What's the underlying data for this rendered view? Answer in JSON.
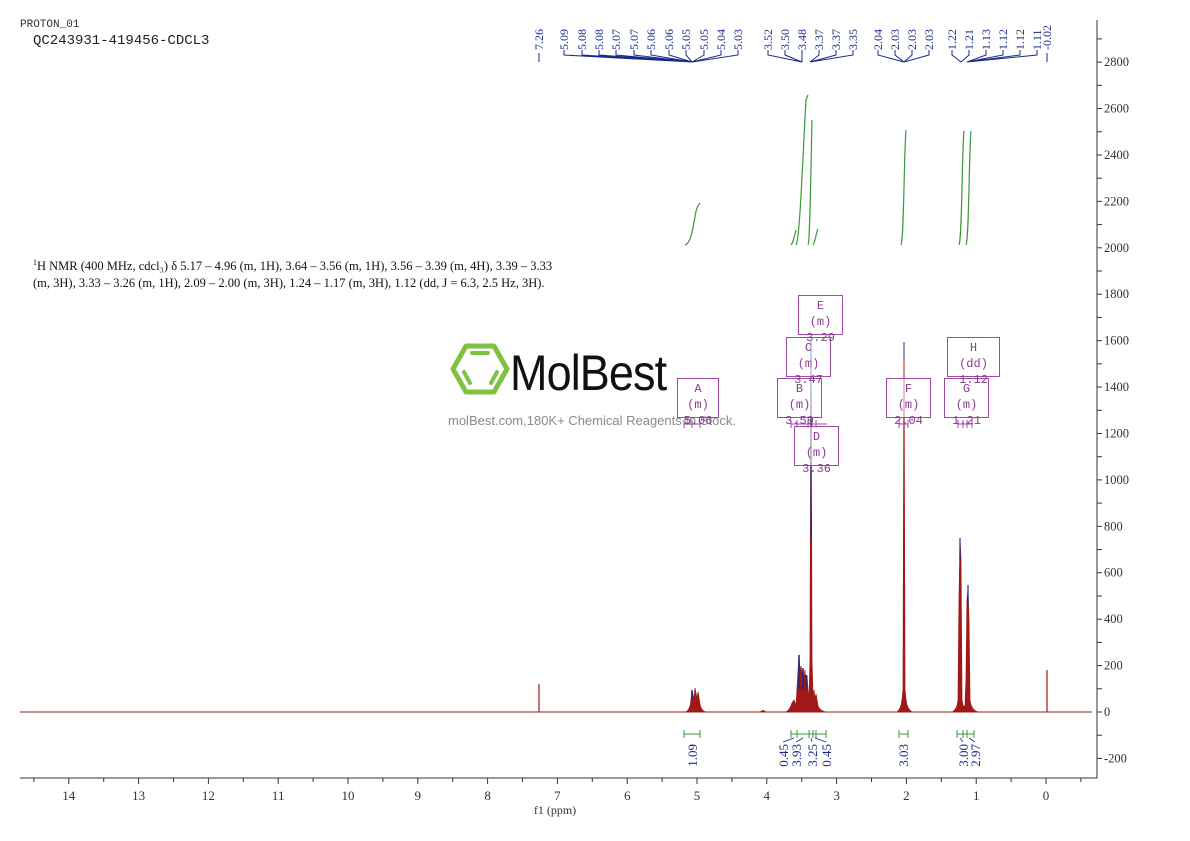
{
  "header": {
    "experiment": "PROTON_01",
    "sample_id": "QC243931-419456-CDCL3"
  },
  "description": {
    "line1_prefix": "1",
    "line1": "H NMR (400 MHz, cdcl₃) δ 5.17 – 4.96 (m, 1H), 3.64 – 3.56 (m, 1H), 3.56 – 3.39 (m, 4H), 3.39 – 3.33",
    "line2": "(m, 3H), 3.33 – 3.26 (m, 1H), 2.09 – 2.00 (m, 3H), 1.24 – 1.17 (m, 3H), 1.12 (dd, J = 6.3, 2.5 Hz, 3H)."
  },
  "watermark": {
    "brand": "MolBest",
    "tagline": "molBest.com,180K+ Chemical Reagents In Stock.",
    "logo_color": "#7dc243"
  },
  "peak_boxes": [
    {
      "id": "A",
      "mult": "A (m)",
      "shift": "5.06"
    },
    {
      "id": "B",
      "mult": "B (m)",
      "shift": "3.59"
    },
    {
      "id": "C",
      "mult": "C (m)",
      "shift": "3.47"
    },
    {
      "id": "D",
      "mult": "D (m)",
      "shift": "3.36"
    },
    {
      "id": "E",
      "mult": "E (m)",
      "shift": "3.29"
    },
    {
      "id": "F",
      "mult": "F (m)",
      "shift": "2.04"
    },
    {
      "id": "G",
      "mult": "G (m)",
      "shift": "1.21"
    },
    {
      "id": "H",
      "mult": "H (dd)",
      "shift": "1.12"
    }
  ],
  "colors": {
    "spectrum": "#a01818",
    "peak_label": "#1a2a8a",
    "integral": "#3a9a3a",
    "multiplet_box": "#a04aa8",
    "axis": "#333333"
  },
  "chart_data": {
    "type": "line",
    "title": "PROTON_01 QC243931-419456-CDCL3",
    "xlabel": "f1 (ppm)",
    "ylabel": "",
    "xlim": [
      14.7,
      -0.7
    ],
    "ylim": [
      -280,
      2980
    ],
    "x_ticks": [
      "14",
      "13",
      "12",
      "11",
      "10",
      "9",
      "8",
      "7",
      "6",
      "5",
      "4",
      "3",
      "2",
      "1",
      "0"
    ],
    "y_ticks": [
      "2800",
      "2600",
      "2400",
      "2200",
      "2000",
      "1800",
      "1600",
      "1400",
      "1200",
      "1000",
      "800",
      "600",
      "400",
      "200",
      "0",
      "-200"
    ],
    "peak_labels_ppm": [
      "7.26",
      "5.09",
      "5.08",
      "5.08",
      "5.07",
      "5.07",
      "5.06",
      "5.06",
      "5.05",
      "5.05",
      "5.04",
      "5.03",
      "3.52",
      "3.50",
      "3.48",
      "3.37",
      "3.37",
      "3.35",
      "2.04",
      "2.03",
      "2.03",
      "2.03",
      "1.22",
      "1.21",
      "1.13",
      "1.12",
      "1.12",
      "1.11",
      "-0.02"
    ],
    "peaks": [
      {
        "ppm": 7.26,
        "intensity": 120
      },
      {
        "ppm": 5.06,
        "intensity": 100
      },
      {
        "ppm": 3.59,
        "intensity": 70
      },
      {
        "ppm": 3.5,
        "intensity": 250
      },
      {
        "ppm": 3.47,
        "intensity": 200
      },
      {
        "ppm": 3.42,
        "intensity": 180
      },
      {
        "ppm": 3.36,
        "intensity": 1590
      },
      {
        "ppm": 3.29,
        "intensity": 90
      },
      {
        "ppm": 2.04,
        "intensity": 1600
      },
      {
        "ppm": 1.21,
        "intensity": 750
      },
      {
        "ppm": 1.12,
        "intensity": 540
      },
      {
        "ppm": -0.02,
        "intensity": 180
      }
    ],
    "integrals": [
      {
        "range": [
          5.17,
          4.96
        ],
        "value": "1.09"
      },
      {
        "range": [
          3.64,
          3.56
        ],
        "value": "0.45"
      },
      {
        "range": [
          3.56,
          3.39
        ],
        "value": "3.93"
      },
      {
        "range": [
          3.39,
          3.33
        ],
        "value": "3.25"
      },
      {
        "range": [
          3.33,
          3.26
        ],
        "value": "0.45"
      },
      {
        "range": [
          2.09,
          2.0
        ],
        "value": "3.03"
      },
      {
        "range": [
          1.24,
          1.17
        ],
        "value": "3.00"
      },
      {
        "range": [
          1.15,
          1.09
        ],
        "value": "2.97"
      }
    ],
    "grid": false,
    "legend": "none"
  }
}
